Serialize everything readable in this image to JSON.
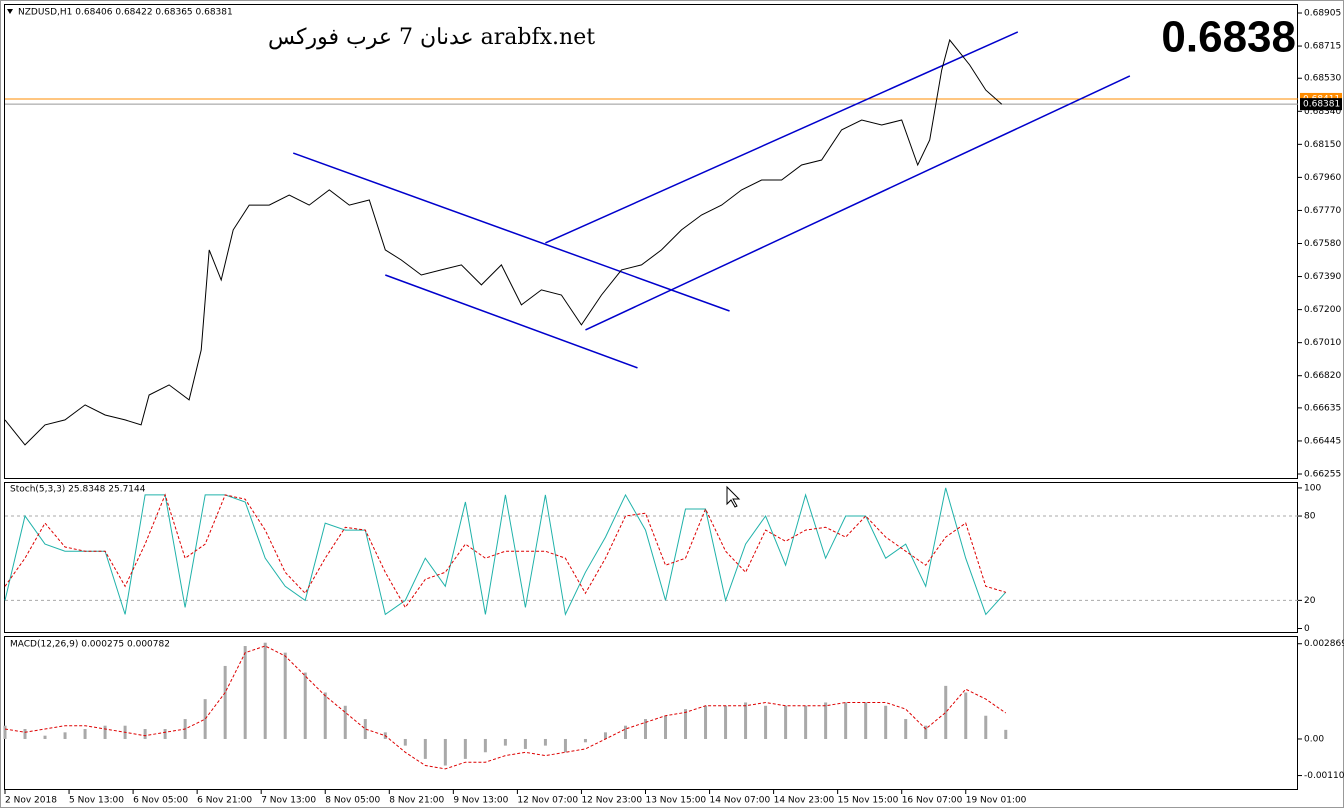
{
  "chart_data": [
    {
      "type": "line",
      "title": "NZDUSD,H1  0.68406 0.68422 0.68365 0.68381",
      "annotations": [
        "عدنان 7 عرب فوركس arabfx.net",
        "0.6838"
      ],
      "xlim": [
        0,
        323
      ],
      "ylim": [
        0.66232,
        0.68951
      ],
      "yticks": [
        0.68905,
        0.68715,
        {
          "value": 0.6853,
          "label": "0.68530"
        },
        {
          "value": 0.6834,
          "label": "0.68340"
        },
        {
          "value": 0.6815,
          "label": "0.68150"
        },
        {
          "value": 0.6796,
          "label": "0.67960"
        },
        {
          "value": 0.6777,
          "label": "0.67770"
        },
        {
          "value": 0.6758,
          "label": "0.67580"
        },
        {
          "value": 0.6739,
          "label": "0.67390"
        },
        {
          "value": 0.672,
          "label": "0.67200"
        },
        {
          "value": 0.6701,
          "label": "0.67010"
        },
        {
          "value": 0.6682,
          "label": "0.66820"
        },
        0.66635,
        0.66445,
        0.66255
      ],
      "x": [
        0,
        5,
        10,
        15,
        20,
        25,
        30,
        34,
        36,
        41,
        46,
        49,
        51,
        54,
        57,
        61,
        66,
        71,
        76,
        81,
        86,
        91,
        95,
        99,
        104,
        109,
        114,
        119,
        124,
        129,
        134,
        139,
        144,
        149,
        154,
        159,
        164,
        169,
        174,
        179,
        184,
        189,
        194,
        199,
        204,
        209,
        214,
        219,
        224,
        228,
        231,
        234,
        236,
        239,
        241,
        245,
        249
      ],
      "series": [
        {
          "color": "#000000",
          "kind": "line",
          "values": [
            0.66566,
            0.66422,
            0.66537,
            0.66566,
            0.66652,
            0.66594,
            0.66566,
            0.66537,
            0.66709,
            0.66767,
            0.66681,
            0.66968,
            0.67543,
            0.6737,
            0.67658,
            0.67801,
            0.67801,
            0.67859,
            0.67801,
            0.67888,
            0.67801,
            0.6783,
            0.67543,
            0.67485,
            0.67399,
            0.67428,
            0.67457,
            0.67342,
            0.67457,
            0.67227,
            0.67313,
            0.67284,
            0.67112,
            0.67284,
            0.67428,
            0.67457,
            0.67543,
            0.67658,
            0.67744,
            0.67801,
            0.67888,
            0.67945,
            0.67945,
            0.68031,
            0.6806,
            0.68233,
            0.6829,
            0.68261,
            0.6829,
            0.68031,
            0.68175,
            0.68577,
            0.6875,
            0.68664,
            0.68606,
            0.68462,
            0.68381
          ]
        }
      ],
      "trendlines": [
        {
          "color": "#0000cc",
          "x": [
            72,
            181
          ],
          "values": [
            0.681,
            0.67192
          ]
        },
        {
          "color": "#0000cc",
          "x": [
            95,
            158
          ],
          "values": [
            0.67399,
            0.66865
          ]
        },
        {
          "color": "#0000cc",
          "x": [
            135,
            253
          ],
          "values": [
            0.67583,
            0.68796
          ]
        },
        {
          "color": "#0000cc",
          "x": [
            145,
            281
          ],
          "values": [
            0.67083,
            0.68543
          ]
        }
      ],
      "price_lines": [
        {
          "value": 0.68411,
          "color": "#ff8c00"
        },
        {
          "value": 0.68381,
          "color": "#000000"
        }
      ]
    },
    {
      "type": "line",
      "title": "Stoch(5,3,3) 25.8348 25.7144",
      "ylim": [
        -2.5,
        103.5
      ],
      "yticks": [
        100,
        80,
        20,
        0
      ],
      "levels": [
        20,
        80
      ],
      "x": [
        0,
        5,
        10,
        15,
        20,
        25,
        30,
        35,
        40,
        45,
        50,
        55,
        60,
        65,
        70,
        75,
        80,
        85,
        90,
        95,
        100,
        105,
        110,
        115,
        120,
        125,
        130,
        135,
        140,
        145,
        150,
        155,
        160,
        165,
        170,
        175,
        180,
        185,
        190,
        195,
        200,
        205,
        210,
        215,
        220,
        225,
        230,
        235,
        240,
        245,
        250
      ],
      "series": [
        {
          "color": "#20b2aa",
          "kind": "line",
          "values": [
            20,
            80,
            60,
            55,
            55,
            55,
            10,
            95,
            95,
            15,
            95,
            95,
            90,
            50,
            30,
            20,
            75,
            70,
            70,
            10,
            20,
            50,
            30,
            90,
            10,
            95,
            15,
            95,
            10,
            40,
            65,
            95,
            70,
            20,
            85,
            85,
            20,
            60,
            80,
            45,
            95,
            50,
            80,
            80,
            50,
            60,
            30,
            100,
            50,
            10,
            25.8348
          ]
        },
        {
          "color": "#dd0000",
          "kind": "line",
          "dashed": true,
          "values": [
            30,
            50,
            75,
            58,
            55,
            55,
            30,
            60,
            95,
            50,
            60,
            95,
            92,
            70,
            40,
            25,
            50,
            72,
            70,
            40,
            15,
            35,
            40,
            60,
            50,
            55,
            55,
            55,
            50,
            25,
            50,
            80,
            82,
            45,
            50,
            85,
            55,
            40,
            70,
            62,
            70,
            72,
            65,
            80,
            65,
            55,
            45,
            65,
            75,
            30,
            25.7144
          ]
        }
      ]
    },
    {
      "type": "line",
      "title": "MACD(12,26,9) 0.000275 0.000782",
      "ylim": [
        -0.001537,
        0.003072
      ],
      "yticks": [
        0.002869,
        {
          "value": 0,
          "label": "0.00"
        },
        -0.001102
      ],
      "xticks": [
        {
          "value": 0,
          "label": "2 Nov 2018"
        },
        {
          "value": 16,
          "label": "5 Nov 13:00"
        },
        {
          "value": 32,
          "label": "6 Nov 05:00"
        },
        {
          "value": 48,
          "label": "6 Nov 21:00"
        },
        {
          "value": 64,
          "label": "7 Nov 13:00"
        },
        {
          "value": 80,
          "label": "8 Nov 05:00"
        },
        {
          "value": 96,
          "label": "8 Nov 21:00"
        },
        {
          "value": 112,
          "label": "9 Nov 13:00"
        },
        {
          "value": 128,
          "label": "12 Nov 07:00"
        },
        {
          "value": 144,
          "label": "12 Nov 23:00"
        },
        {
          "value": 160,
          "label": "13 Nov 15:00"
        },
        {
          "value": 176,
          "label": "14 Nov 07:00"
        },
        {
          "value": 192,
          "label": "14 Nov 23:00"
        },
        {
          "value": 208,
          "label": "15 Nov 15:00"
        },
        {
          "value": 224,
          "label": "16 Nov 07:00"
        },
        {
          "value": 240,
          "label": "19 Nov 01:00"
        }
      ],
      "x": [
        0,
        5,
        10,
        15,
        20,
        25,
        30,
        35,
        40,
        45,
        50,
        55,
        60,
        65,
        70,
        75,
        80,
        85,
        90,
        95,
        100,
        105,
        110,
        115,
        120,
        125,
        130,
        135,
        140,
        145,
        150,
        155,
        160,
        165,
        170,
        175,
        180,
        185,
        190,
        195,
        200,
        205,
        210,
        215,
        220,
        225,
        230,
        235,
        240,
        245,
        250
      ],
      "series": [
        {
          "color": "#a9a9a9",
          "kind": "histogram",
          "values": [
            0.0004,
            0.0003,
            0.0001,
            0.0002,
            0.0003,
            0.0004,
            0.0004,
            0.0003,
            0.0003,
            0.0006,
            0.0012,
            0.0022,
            0.0028,
            0.0029,
            0.0026,
            0.002,
            0.0014,
            0.001,
            0.0006,
            0.0002,
            -0.0002,
            -0.0006,
            -0.0008,
            -0.0006,
            -0.0004,
            -0.0002,
            -0.0003,
            -0.0002,
            -0.0004,
            -0.0001,
            0.0002,
            0.0004,
            0.0006,
            0.0007,
            0.0009,
            0.001,
            0.001,
            0.0011,
            0.001,
            0.001,
            0.001,
            0.0011,
            0.0011,
            0.0011,
            0.001,
            0.0006,
            0.0004,
            0.0016,
            0.0014,
            0.0007,
            0.000275
          ]
        },
        {
          "color": "#dd0000",
          "kind": "line",
          "dashed": true,
          "values": [
            0.0003,
            0.0002,
            0.0003,
            0.0004,
            0.0004,
            0.0003,
            0.0002,
            0.0001,
            0.0002,
            0.0003,
            0.0006,
            0.0014,
            0.0026,
            0.0028,
            0.0025,
            0.0019,
            0.0013,
            0.0008,
            0.0003,
            0.0001,
            -0.0004,
            -0.0008,
            -0.0009,
            -0.0007,
            -0.0007,
            -0.0005,
            -0.0004,
            -0.0005,
            -0.0004,
            -0.0003,
            0,
            0.0003,
            0.0005,
            0.0007,
            0.0008,
            0.001,
            0.001,
            0.001,
            0.0011,
            0.001,
            0.001,
            0.001,
            0.0011,
            0.0011,
            0.0011,
            0.0009,
            0.0003,
            0.0008,
            0.0015,
            0.0012,
            0.000782
          ]
        }
      ]
    }
  ]
}
